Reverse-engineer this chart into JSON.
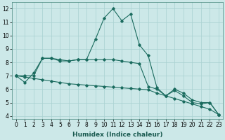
{
  "background_color": "#cce8e8",
  "grid_color": "#a8d0d0",
  "line_color": "#1a6b5e",
  "xlabel": "Humidex (Indice chaleur)",
  "x": [
    0,
    1,
    2,
    3,
    4,
    5,
    6,
    7,
    8,
    9,
    10,
    11,
    12,
    13,
    14,
    15,
    16,
    17,
    18,
    19,
    20,
    21,
    22,
    23
  ],
  "line1": [
    7.0,
    6.5,
    7.2,
    8.3,
    8.3,
    8.2,
    8.1,
    8.2,
    8.2,
    9.7,
    11.3,
    12.0,
    11.1,
    11.6,
    9.3,
    8.5,
    6.1,
    5.5,
    6.0,
    5.7,
    5.2,
    5.0,
    5.0,
    4.1
  ],
  "line2": [
    7.0,
    7.0,
    7.0,
    8.3,
    8.3,
    8.1,
    8.1,
    8.2,
    8.2,
    8.2,
    8.2,
    8.2,
    8.1,
    8.0,
    7.9,
    6.2,
    6.0,
    5.5,
    5.9,
    5.5,
    5.0,
    4.9,
    5.0,
    4.1
  ],
  "line3": [
    7.0,
    6.9,
    6.8,
    6.7,
    6.6,
    6.5,
    6.4,
    6.35,
    6.3,
    6.25,
    6.2,
    6.15,
    6.1,
    6.05,
    6.0,
    5.95,
    5.7,
    5.5,
    5.3,
    5.1,
    4.9,
    4.7,
    4.5,
    4.1
  ],
  "ylim": [
    3.8,
    12.5
  ],
  "xlim": [
    -0.5,
    23.5
  ],
  "yticks": [
    4,
    5,
    6,
    7,
    8,
    9,
    10,
    11,
    12
  ],
  "xlabel_fontsize": 6.5,
  "tick_fontsize": 5.5,
  "linewidth": 0.8,
  "markersize": 1.8
}
